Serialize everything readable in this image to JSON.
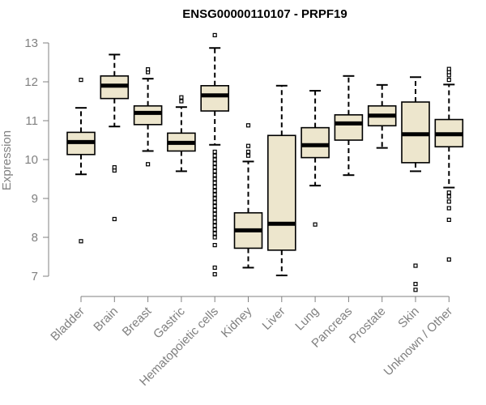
{
  "chart_data": {
    "type": "boxplot",
    "title": "ENSG00000110107 - PRPF19",
    "xlabel": "",
    "ylabel": "Expression",
    "ylim": [
      6.6,
      13.2
    ],
    "yticks": [
      7,
      8,
      9,
      10,
      11,
      12,
      13
    ],
    "grid": false,
    "categories": [
      "Bladder",
      "Brain",
      "Breast",
      "Gastric",
      "Hematopoietic cells",
      "Kidney",
      "Liver",
      "Lung",
      "Pancreas",
      "Prostate",
      "Skin",
      "Unknown / Other"
    ],
    "boxes": [
      {
        "whisker_low": 9.62,
        "q1": 10.13,
        "median": 10.45,
        "q3": 10.7,
        "whisker_high": 11.33,
        "outliers": [
          7.9,
          12.05
        ]
      },
      {
        "whisker_low": 10.85,
        "q1": 11.57,
        "median": 11.9,
        "q3": 12.15,
        "whisker_high": 12.7,
        "outliers": [
          8.47,
          9.72,
          9.8
        ]
      },
      {
        "whisker_low": 10.22,
        "q1": 10.9,
        "median": 11.2,
        "q3": 11.38,
        "whisker_high": 12.08,
        "outliers": [
          9.88,
          12.25,
          12.32
        ]
      },
      {
        "whisker_low": 9.7,
        "q1": 10.22,
        "median": 10.43,
        "q3": 10.68,
        "whisker_high": 11.35,
        "outliers": [
          11.5,
          11.6
        ]
      },
      {
        "whisker_low": 10.38,
        "q1": 11.25,
        "median": 11.65,
        "q3": 11.9,
        "whisker_high": 12.87,
        "outliers": [
          13.2,
          7.05,
          7.22,
          7.8,
          8.0,
          8.1,
          8.2,
          8.3,
          8.4,
          8.5,
          8.6,
          8.7,
          8.8,
          8.9,
          9.0,
          9.1,
          9.2,
          9.3,
          9.4,
          9.5,
          9.6,
          9.7,
          9.8,
          9.9,
          10.0,
          10.1,
          10.2
        ]
      },
      {
        "whisker_low": 7.22,
        "q1": 7.72,
        "median": 8.18,
        "q3": 8.63,
        "whisker_high": 9.95,
        "outliers": [
          10.1,
          10.2,
          10.35,
          10.88
        ]
      },
      {
        "whisker_low": 7.02,
        "q1": 7.67,
        "median": 8.35,
        "q3": 10.62,
        "whisker_high": 11.9,
        "outliers": []
      },
      {
        "whisker_low": 9.33,
        "q1": 10.05,
        "median": 10.37,
        "q3": 10.82,
        "whisker_high": 11.77,
        "outliers": [
          8.33
        ]
      },
      {
        "whisker_low": 9.6,
        "q1": 10.5,
        "median": 10.93,
        "q3": 11.15,
        "whisker_high": 12.15,
        "outliers": []
      },
      {
        "whisker_low": 10.3,
        "q1": 10.87,
        "median": 11.13,
        "q3": 11.38,
        "whisker_high": 11.92,
        "outliers": []
      },
      {
        "whisker_low": 9.7,
        "q1": 9.92,
        "median": 10.65,
        "q3": 11.48,
        "whisker_high": 12.12,
        "outliers": [
          6.65,
          6.8,
          7.27
        ]
      },
      {
        "whisker_low": 9.28,
        "q1": 10.33,
        "median": 10.65,
        "q3": 11.03,
        "whisker_high": 11.93,
        "outliers": [
          7.43,
          8.45,
          8.75,
          8.92,
          9.05,
          9.15,
          12.05,
          12.17,
          12.25,
          12.33
        ]
      }
    ],
    "colors": {
      "box_fill": "#ede6cd",
      "box_stroke": "#000000",
      "median": "#000000",
      "axis": "#808080",
      "text": "#808080",
      "title": "#000000"
    }
  }
}
